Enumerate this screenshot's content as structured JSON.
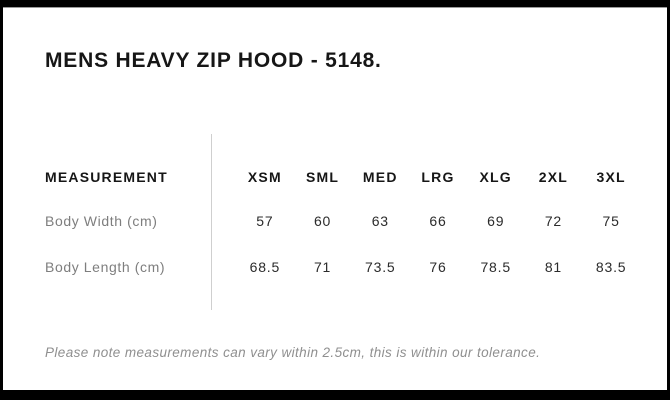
{
  "header": {
    "title": "MENS HEAVY ZIP HOOD - 5148."
  },
  "size_chart": {
    "label_header": "MEASUREMENT",
    "sizes": [
      "XSM",
      "SML",
      "MED",
      "LRG",
      "XLG",
      "2XL",
      "3XL"
    ],
    "rows": [
      {
        "label": "Body Width (cm)",
        "values": [
          "57",
          "60",
          "63",
          "66",
          "69",
          "72",
          "75"
        ]
      },
      {
        "label": "Body Length (cm)",
        "values": [
          "68.5",
          "71",
          "73.5",
          "76",
          "78.5",
          "81",
          "83.5"
        ]
      }
    ]
  },
  "footer": {
    "note": "Please note measurements can vary within 2.5cm, this is within our tolerance."
  },
  "colors": {
    "frame": "#000000",
    "background": "#ffffff",
    "heading_text": "#161616",
    "row_label_text": "#7e7e7e",
    "value_text": "#2b2b2b",
    "footer_text": "#8f8f8f",
    "divider": "#cfcfcf"
  }
}
